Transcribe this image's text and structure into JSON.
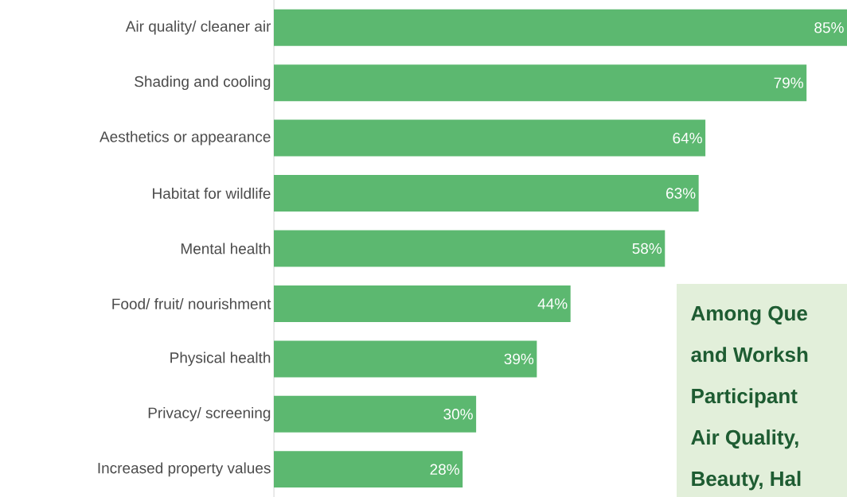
{
  "chart_data": {
    "type": "bar",
    "orientation": "horizontal",
    "categories": [
      "Air quality/ cleaner air",
      "Shading and cooling",
      "Aesthetics or appearance",
      "Habitat for wildlife",
      "Mental health",
      "Food/ fruit/ nourishment",
      "Physical health",
      "Privacy/ screening",
      "Increased property values"
    ],
    "values": [
      85,
      79,
      64,
      63,
      58,
      44,
      39,
      30,
      28
    ],
    "value_labels": [
      "85%",
      "79%",
      "64%",
      "63%",
      "58%",
      "44%",
      "39%",
      "30%",
      "28%"
    ],
    "color": "#5cb870",
    "annotations": [
      "Among Que",
      "and Worksh",
      "Participant",
      "Air Quality,",
      "Beauty, Hal"
    ]
  }
}
